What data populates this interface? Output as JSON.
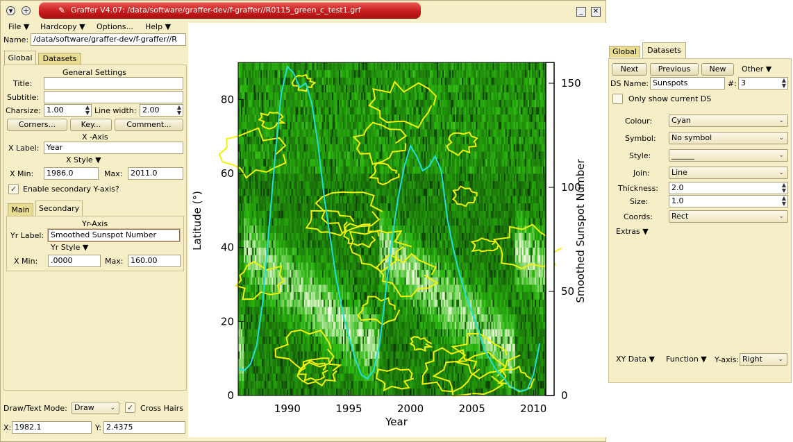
{
  "window": {
    "title": "Graffer V4.07: /data/software/graffer-dev/f-graffer//R0115_green_c_test1.grf"
  },
  "menu": [
    "File ▼",
    "Hardcopy ▼",
    "Options...",
    "Help ▼"
  ],
  "name": {
    "label": "Name:",
    "value": "/data/software/graffer-dev/f-graffer//R"
  },
  "left_tabs": {
    "global": "Global",
    "datasets": "Datasets"
  },
  "general": {
    "heading": "General Settings",
    "title_label": "Title:",
    "title_value": "",
    "subtitle_label": "Subtitle:",
    "subtitle_value": "",
    "charsize_label": "Charsize:",
    "charsize_value": "1.00",
    "linewidth_label": "Line width:",
    "linewidth_value": "2.00",
    "corners_btn": "Corners...",
    "key_btn": "Key...",
    "comment_btn": "Comment..."
  },
  "xaxis": {
    "heading": "X -Axis",
    "label_label": "X Label:",
    "label_value": "Year",
    "style": "X Style ▼",
    "min_label": "X  Min:",
    "min_value": "1986.0",
    "max_label": "Max:",
    "max_value": "2011.0",
    "secondary_label": "Enable secondary Y-axis?"
  },
  "yaxis_tabs": {
    "main": "Main",
    "secondary": "Secondary"
  },
  "yraxis": {
    "heading": "Yr-Axis",
    "label_label": "Yr Label:",
    "label_value": "Smoothed Sunspot Number",
    "style": "Yr Style ▼",
    "min_label": "X  Min:",
    "min_value": ".0000",
    "max_label": "Max:",
    "max_value": "160.00"
  },
  "footer": {
    "mode_label": "Draw/Text Mode:",
    "mode_value": "Draw",
    "crosshairs_label": "Cross Hairs",
    "x_label": "X:",
    "x_value": "1982.1",
    "y_label": "Y:",
    "y_value": "2.4375"
  },
  "chart_data": {
    "type": "heatmap",
    "xlabel": "Year",
    "ylabel": "Latitude (°)",
    "y2label": "Smoothed Sunspot Number",
    "xlim": [
      1986,
      2011
    ],
    "ylim": [
      0,
      90
    ],
    "y2lim": [
      0,
      160
    ],
    "xticks": [
      "1990",
      "1995",
      "2000",
      "2005",
      "2010"
    ],
    "yticks": [
      "0",
      "20",
      "40",
      "60",
      "80"
    ],
    "y2ticks": [
      "0",
      "50",
      "100",
      "150"
    ],
    "sunspot_series": {
      "color": "#22e0d8",
      "x": [
        1986.0,
        1986.5,
        1987.0,
        1987.5,
        1988.0,
        1988.5,
        1989.0,
        1989.5,
        1990.0,
        1990.5,
        1991.0,
        1991.5,
        1992.0,
        1992.5,
        1993.0,
        1993.5,
        1994.0,
        1994.5,
        1995.0,
        1995.5,
        1996.0,
        1996.5,
        1997.0,
        1997.5,
        1998.0,
        1998.5,
        1999.0,
        1999.5,
        2000.0,
        2000.5,
        2001.0,
        2001.5,
        2002.0,
        2002.5,
        2003.0,
        2003.5,
        2004.0,
        2004.5,
        2005.0,
        2005.5,
        2006.0,
        2006.5,
        2007.0,
        2007.5,
        2008.0,
        2008.5,
        2009.0,
        2009.5,
        2010.0,
        2010.5
      ],
      "y": [
        13,
        12,
        15,
        24,
        45,
        80,
        115,
        145,
        158,
        155,
        148,
        150,
        140,
        120,
        95,
        75,
        55,
        40,
        28,
        18,
        10,
        8,
        12,
        25,
        50,
        75,
        95,
        110,
        120,
        115,
        108,
        110,
        115,
        108,
        85,
        70,
        58,
        48,
        40,
        32,
        22,
        17,
        12,
        9,
        5,
        3,
        2,
        3,
        10,
        25
      ]
    }
  },
  "right_tabs": {
    "global": "Global",
    "datasets": "Datasets"
  },
  "ds": {
    "next_btn": "Next",
    "prev_btn": "Previous",
    "new_btn": "New",
    "other": "Other ▼",
    "name_label": "DS Name:",
    "name_value": "Sunspots",
    "num_label": "#:",
    "num_value": "3",
    "only_label": "Only show current DS",
    "colour_label": "Colour:",
    "colour_value": "Cyan",
    "symbol_label": "Symbol:",
    "symbol_value": "No symbol",
    "style_label": "Style:",
    "style_value": "______",
    "join_label": "Join:",
    "join_value": "Line",
    "thickness_label": "Thickness:",
    "thickness_value": "2.0",
    "size_label": "Size:",
    "size_value": "1.0",
    "coords_label": "Coords:",
    "coords_value": "Rect",
    "extras": "Extras ▼",
    "xydata": "XY Data ▼",
    "function": "Function ▼",
    "yaxis_label": "Y-axis:",
    "yaxis_value": "Right"
  }
}
